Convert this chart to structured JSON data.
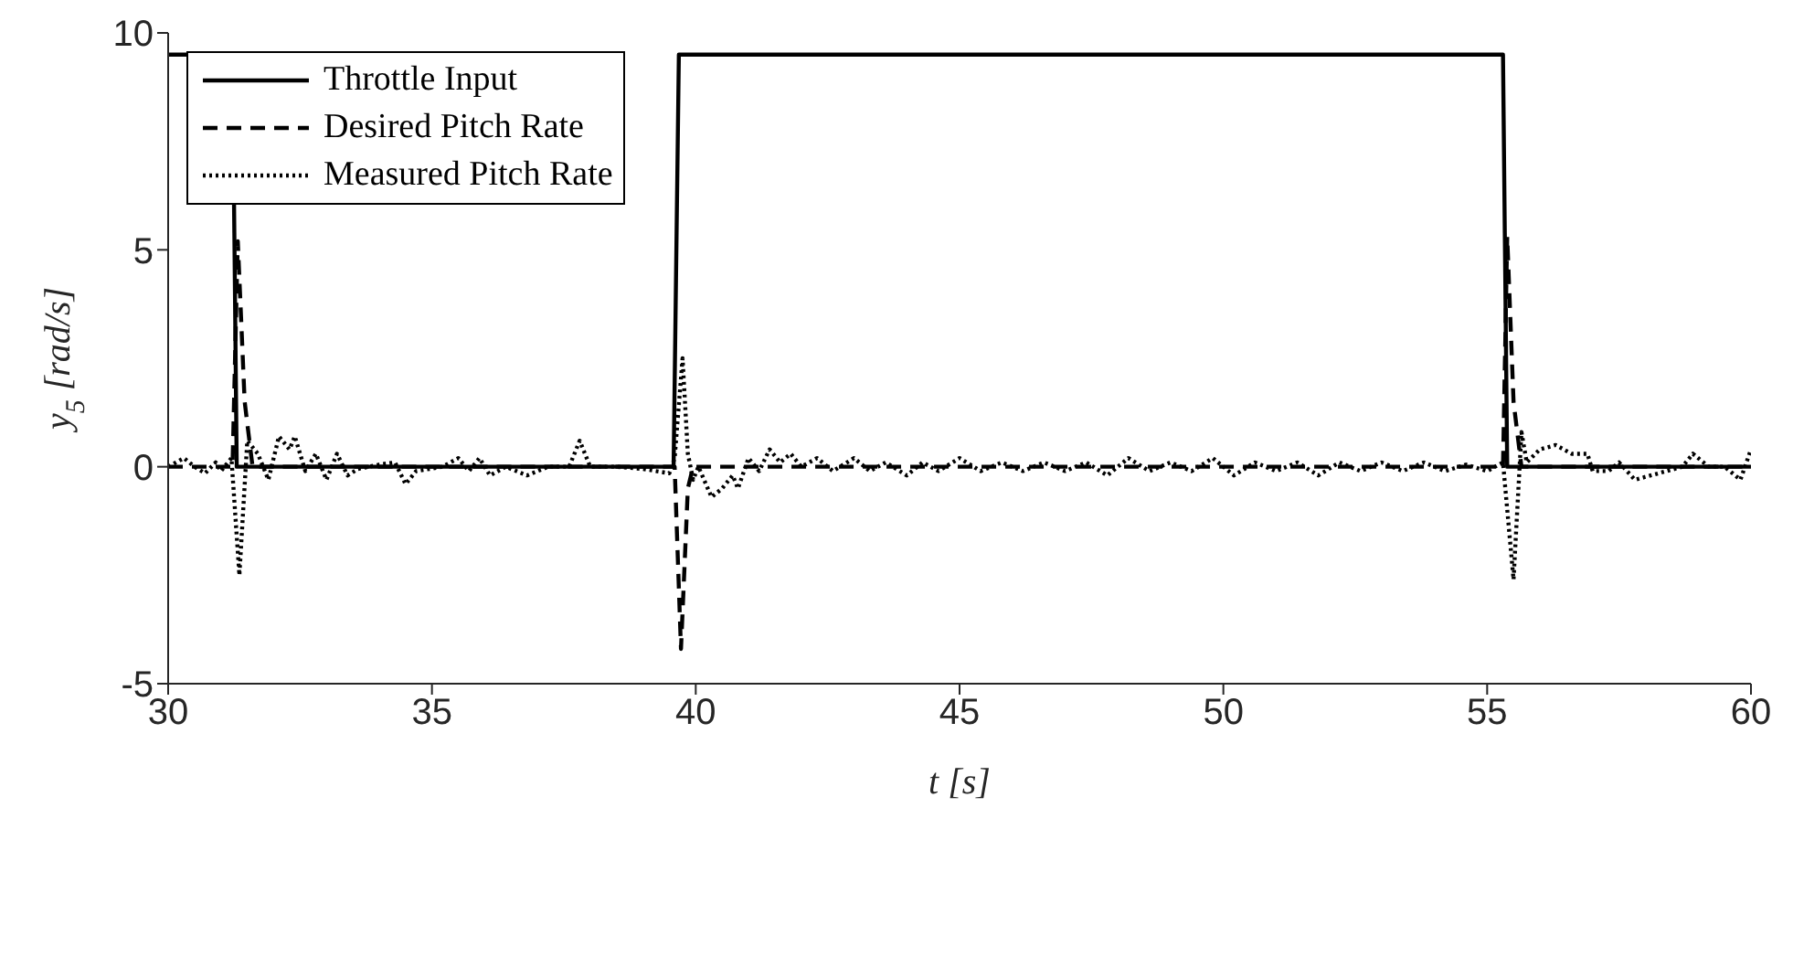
{
  "chart_data": {
    "type": "line",
    "xlabel": "t [s]",
    "ylabel": "y$_{5}$ [rad/s]",
    "xlim": [
      30,
      60
    ],
    "xticks": [
      30,
      35,
      40,
      45,
      50,
      55,
      60
    ],
    "ylim": [
      -5,
      10
    ],
    "yticks": [
      -5,
      0,
      5,
      10
    ],
    "grid": false,
    "legend": "top left",
    "marker": "none",
    "series": [
      {
        "name": "Throttle Input",
        "color": "#000000",
        "line_style": "solid",
        "x": [
          30,
          31.22,
          31.3,
          39.58,
          39.68,
          55.3,
          55.38,
          60
        ],
        "values": [
          9.5,
          9.5,
          0,
          0,
          9.5,
          9.5,
          0,
          0
        ]
      },
      {
        "name": "Desired Pitch Rate",
        "color": "#000000",
        "line_style": "dashed",
        "x": [
          30,
          31.22,
          31.32,
          31.45,
          31.6,
          39.6,
          39.72,
          39.85,
          39.95,
          55.3,
          55.38,
          55.5,
          55.65,
          60
        ],
        "values": [
          0,
          0,
          5.2,
          1.5,
          0,
          0,
          -4.2,
          -0.5,
          0,
          0,
          5.3,
          1.5,
          0,
          0
        ]
      },
      {
        "name": "Measured Pitch Rate",
        "color": "#000000",
        "line_style": "dotted",
        "x": [
          30,
          30.3,
          30.5,
          30.7,
          30.9,
          31.0,
          31.2,
          31.35,
          31.5,
          31.7,
          31.9,
          32.1,
          32.3,
          32.4,
          32.6,
          32.8,
          33.0,
          33.2,
          33.4,
          33.6,
          34.0,
          34.3,
          34.5,
          34.7,
          35.2,
          35.5,
          35.7,
          35.9,
          36.1,
          36.4,
          36.8,
          37.2,
          37.6,
          37.8,
          38.0,
          38.5,
          39.0,
          39.5,
          39.6,
          39.75,
          39.85,
          39.95,
          40.05,
          40.3,
          40.5,
          40.7,
          40.8,
          41.0,
          41.2,
          41.4,
          41.6,
          41.8,
          42.0,
          42.3,
          42.6,
          43.0,
          43.3,
          43.6,
          44.0,
          44.3,
          44.6,
          45.0,
          45.4,
          45.8,
          46.2,
          46.6,
          47.0,
          47.4,
          47.8,
          48.2,
          48.6,
          49.0,
          49.4,
          49.8,
          50.2,
          50.6,
          51.0,
          51.4,
          51.8,
          52.2,
          52.6,
          53.0,
          53.4,
          53.8,
          54.2,
          54.6,
          55.0,
          55.3,
          55.5,
          55.65,
          55.75,
          56.0,
          56.3,
          56.6,
          56.9,
          57.0,
          57.3,
          57.5,
          57.8,
          58.1,
          58.4,
          58.7,
          58.9,
          59.2,
          59.5,
          59.8,
          60
        ],
        "values": [
          0,
          0.2,
          0,
          -0.15,
          0.1,
          -0.1,
          0.2,
          -2.5,
          0.6,
          0.3,
          -0.3,
          0.7,
          0.4,
          0.7,
          -0.1,
          0.3,
          -0.3,
          0.3,
          -0.2,
          -0.05,
          0.05,
          0.1,
          -0.4,
          -0.1,
          0,
          0.2,
          -0.1,
          0.2,
          -0.2,
          0,
          -0.2,
          0,
          0,
          0.6,
          0,
          0,
          -0.05,
          -0.15,
          0.2,
          2.5,
          0.3,
          -0.3,
          0,
          -0.7,
          -0.5,
          -0.2,
          -0.5,
          0.2,
          -0.1,
          0.4,
          0.1,
          0.3,
          0,
          0.2,
          -0.1,
          0.2,
          -0.1,
          0.1,
          -0.2,
          0.1,
          -0.1,
          0.2,
          -0.1,
          0.1,
          -0.1,
          0.1,
          -0.1,
          0.1,
          -0.2,
          0.2,
          -0.1,
          0.1,
          -0.1,
          0.2,
          -0.2,
          0.1,
          -0.1,
          0.1,
          -0.2,
          0.1,
          -0.1,
          0.1,
          -0.1,
          0.1,
          -0.1,
          0.05,
          -0.1,
          0.1,
          -2.6,
          0.8,
          0.1,
          0.4,
          0.5,
          0.3,
          0.3,
          -0.1,
          -0.1,
          0.1,
          -0.3,
          -0.2,
          -0.1,
          0,
          0.3,
          0,
          0,
          -0.3,
          0.4
        ]
      }
    ]
  }
}
